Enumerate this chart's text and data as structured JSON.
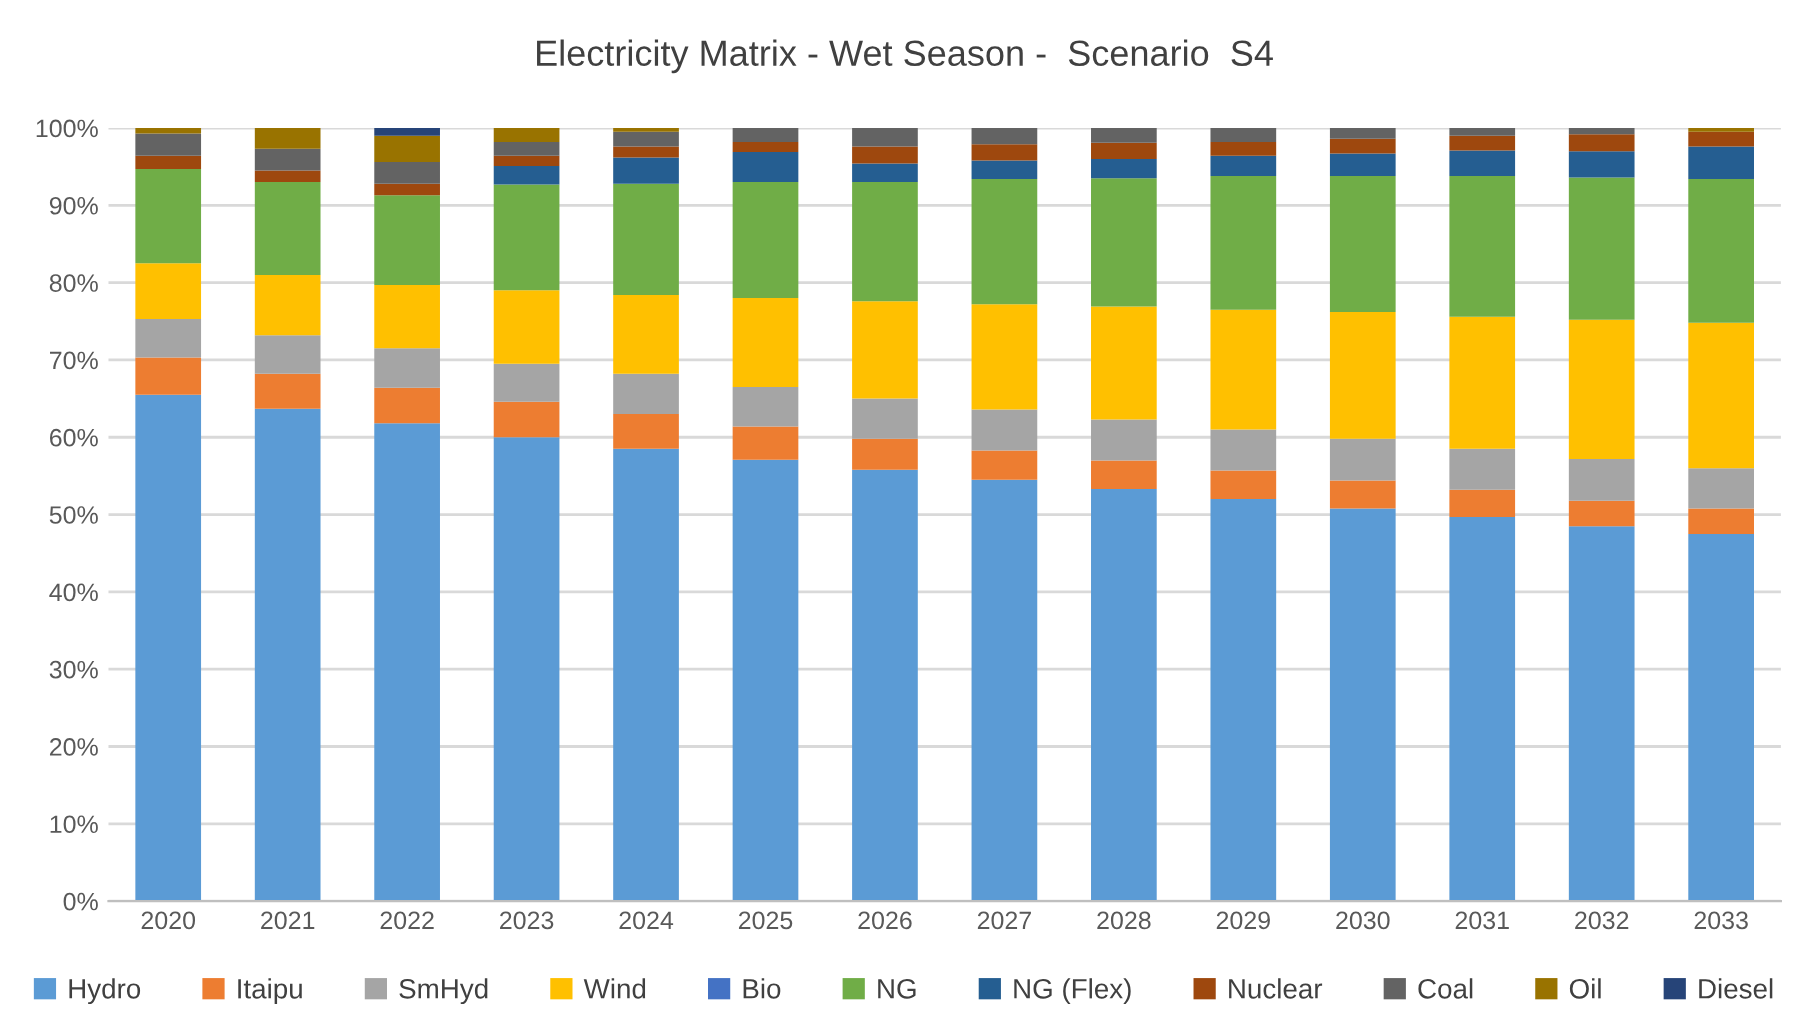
{
  "chart_data": {
    "type": "bar",
    "stacked": true,
    "title": "Electricity Matrix - Wet Season -  Scenario  S4",
    "categories": [
      "2020",
      "2021",
      "2022",
      "2023",
      "2024",
      "2025",
      "2026",
      "2027",
      "2028",
      "2029",
      "2030",
      "2031",
      "2032",
      "2033"
    ],
    "series": [
      {
        "name": "Hydro",
        "color": "#5b9bd5",
        "values": [
          65.5,
          63.7,
          61.8,
          60.0,
          58.5,
          57.1,
          55.8,
          54.5,
          53.3,
          52.0,
          50.8,
          49.7,
          48.5,
          47.5
        ]
      },
      {
        "name": "Itaipu",
        "color": "#ed7d31",
        "values": [
          4.8,
          4.5,
          4.6,
          4.6,
          4.5,
          4.3,
          4.0,
          3.8,
          3.7,
          3.7,
          3.6,
          3.5,
          3.3,
          3.3
        ]
      },
      {
        "name": "SmHyd",
        "color": "#a5a5a5",
        "values": [
          5.0,
          5.0,
          5.1,
          4.9,
          5.2,
          5.1,
          5.2,
          5.3,
          5.3,
          5.3,
          5.4,
          5.3,
          5.4,
          5.2
        ]
      },
      {
        "name": "Wind",
        "color": "#ffc000",
        "values": [
          7.2,
          7.8,
          8.2,
          9.5,
          10.2,
          11.5,
          12.6,
          13.6,
          14.6,
          15.5,
          16.4,
          17.1,
          18.0,
          18.8
        ]
      },
      {
        "name": "Bio",
        "color": "#4472c4",
        "values": [
          0,
          0,
          0,
          0,
          0,
          0,
          0,
          0,
          0,
          0,
          0,
          0,
          0,
          0
        ]
      },
      {
        "name": "NG",
        "color": "#70ad47",
        "values": [
          12.2,
          12.0,
          11.6,
          13.7,
          14.4,
          15.0,
          15.4,
          16.2,
          16.6,
          17.3,
          17.6,
          18.2,
          18.4,
          18.6
        ]
      },
      {
        "name": "NG (Flex)",
        "color": "#255e91",
        "values": [
          0,
          0,
          0,
          2.4,
          3.4,
          3.9,
          2.4,
          2.4,
          2.5,
          2.6,
          2.9,
          3.3,
          3.4,
          4.2
        ]
      },
      {
        "name": "Nuclear",
        "color": "#9e480e",
        "values": [
          1.7,
          1.5,
          1.5,
          1.3,
          1.4,
          1.3,
          2.2,
          2.1,
          2.1,
          1.8,
          1.9,
          1.9,
          2.2,
          1.9
        ]
      },
      {
        "name": "Coal",
        "color": "#636363",
        "values": [
          2.9,
          2.8,
          2.8,
          1.8,
          1.9,
          1.8,
          2.4,
          2.1,
          1.9,
          1.8,
          1.4,
          1.0,
          0.8,
          0
        ]
      },
      {
        "name": "Oil",
        "color": "#997300",
        "values": [
          0.7,
          2.7,
          3.4,
          1.8,
          0.5,
          0,
          0,
          0,
          0,
          0,
          0,
          0,
          0,
          0.5
        ]
      },
      {
        "name": "Diesel",
        "color": "#264478",
        "values": [
          0,
          0,
          1.0,
          0,
          0,
          0,
          0,
          0,
          0,
          0,
          0,
          0,
          0,
          0
        ]
      }
    ],
    "ylim": [
      0,
      100
    ],
    "yticks": [
      {
        "value": 0,
        "label": "0%"
      },
      {
        "value": 10,
        "label": "10%"
      },
      {
        "value": 20,
        "label": "20%"
      },
      {
        "value": 30,
        "label": "30%"
      },
      {
        "value": 40,
        "label": "40%"
      },
      {
        "value": 50,
        "label": "50%"
      },
      {
        "value": 60,
        "label": "60%"
      },
      {
        "value": 70,
        "label": "70%"
      },
      {
        "value": 80,
        "label": "80%"
      },
      {
        "value": 90,
        "label": "90%"
      },
      {
        "value": 100,
        "label": "100%"
      }
    ],
    "grid": "y",
    "legend": "bottom"
  }
}
